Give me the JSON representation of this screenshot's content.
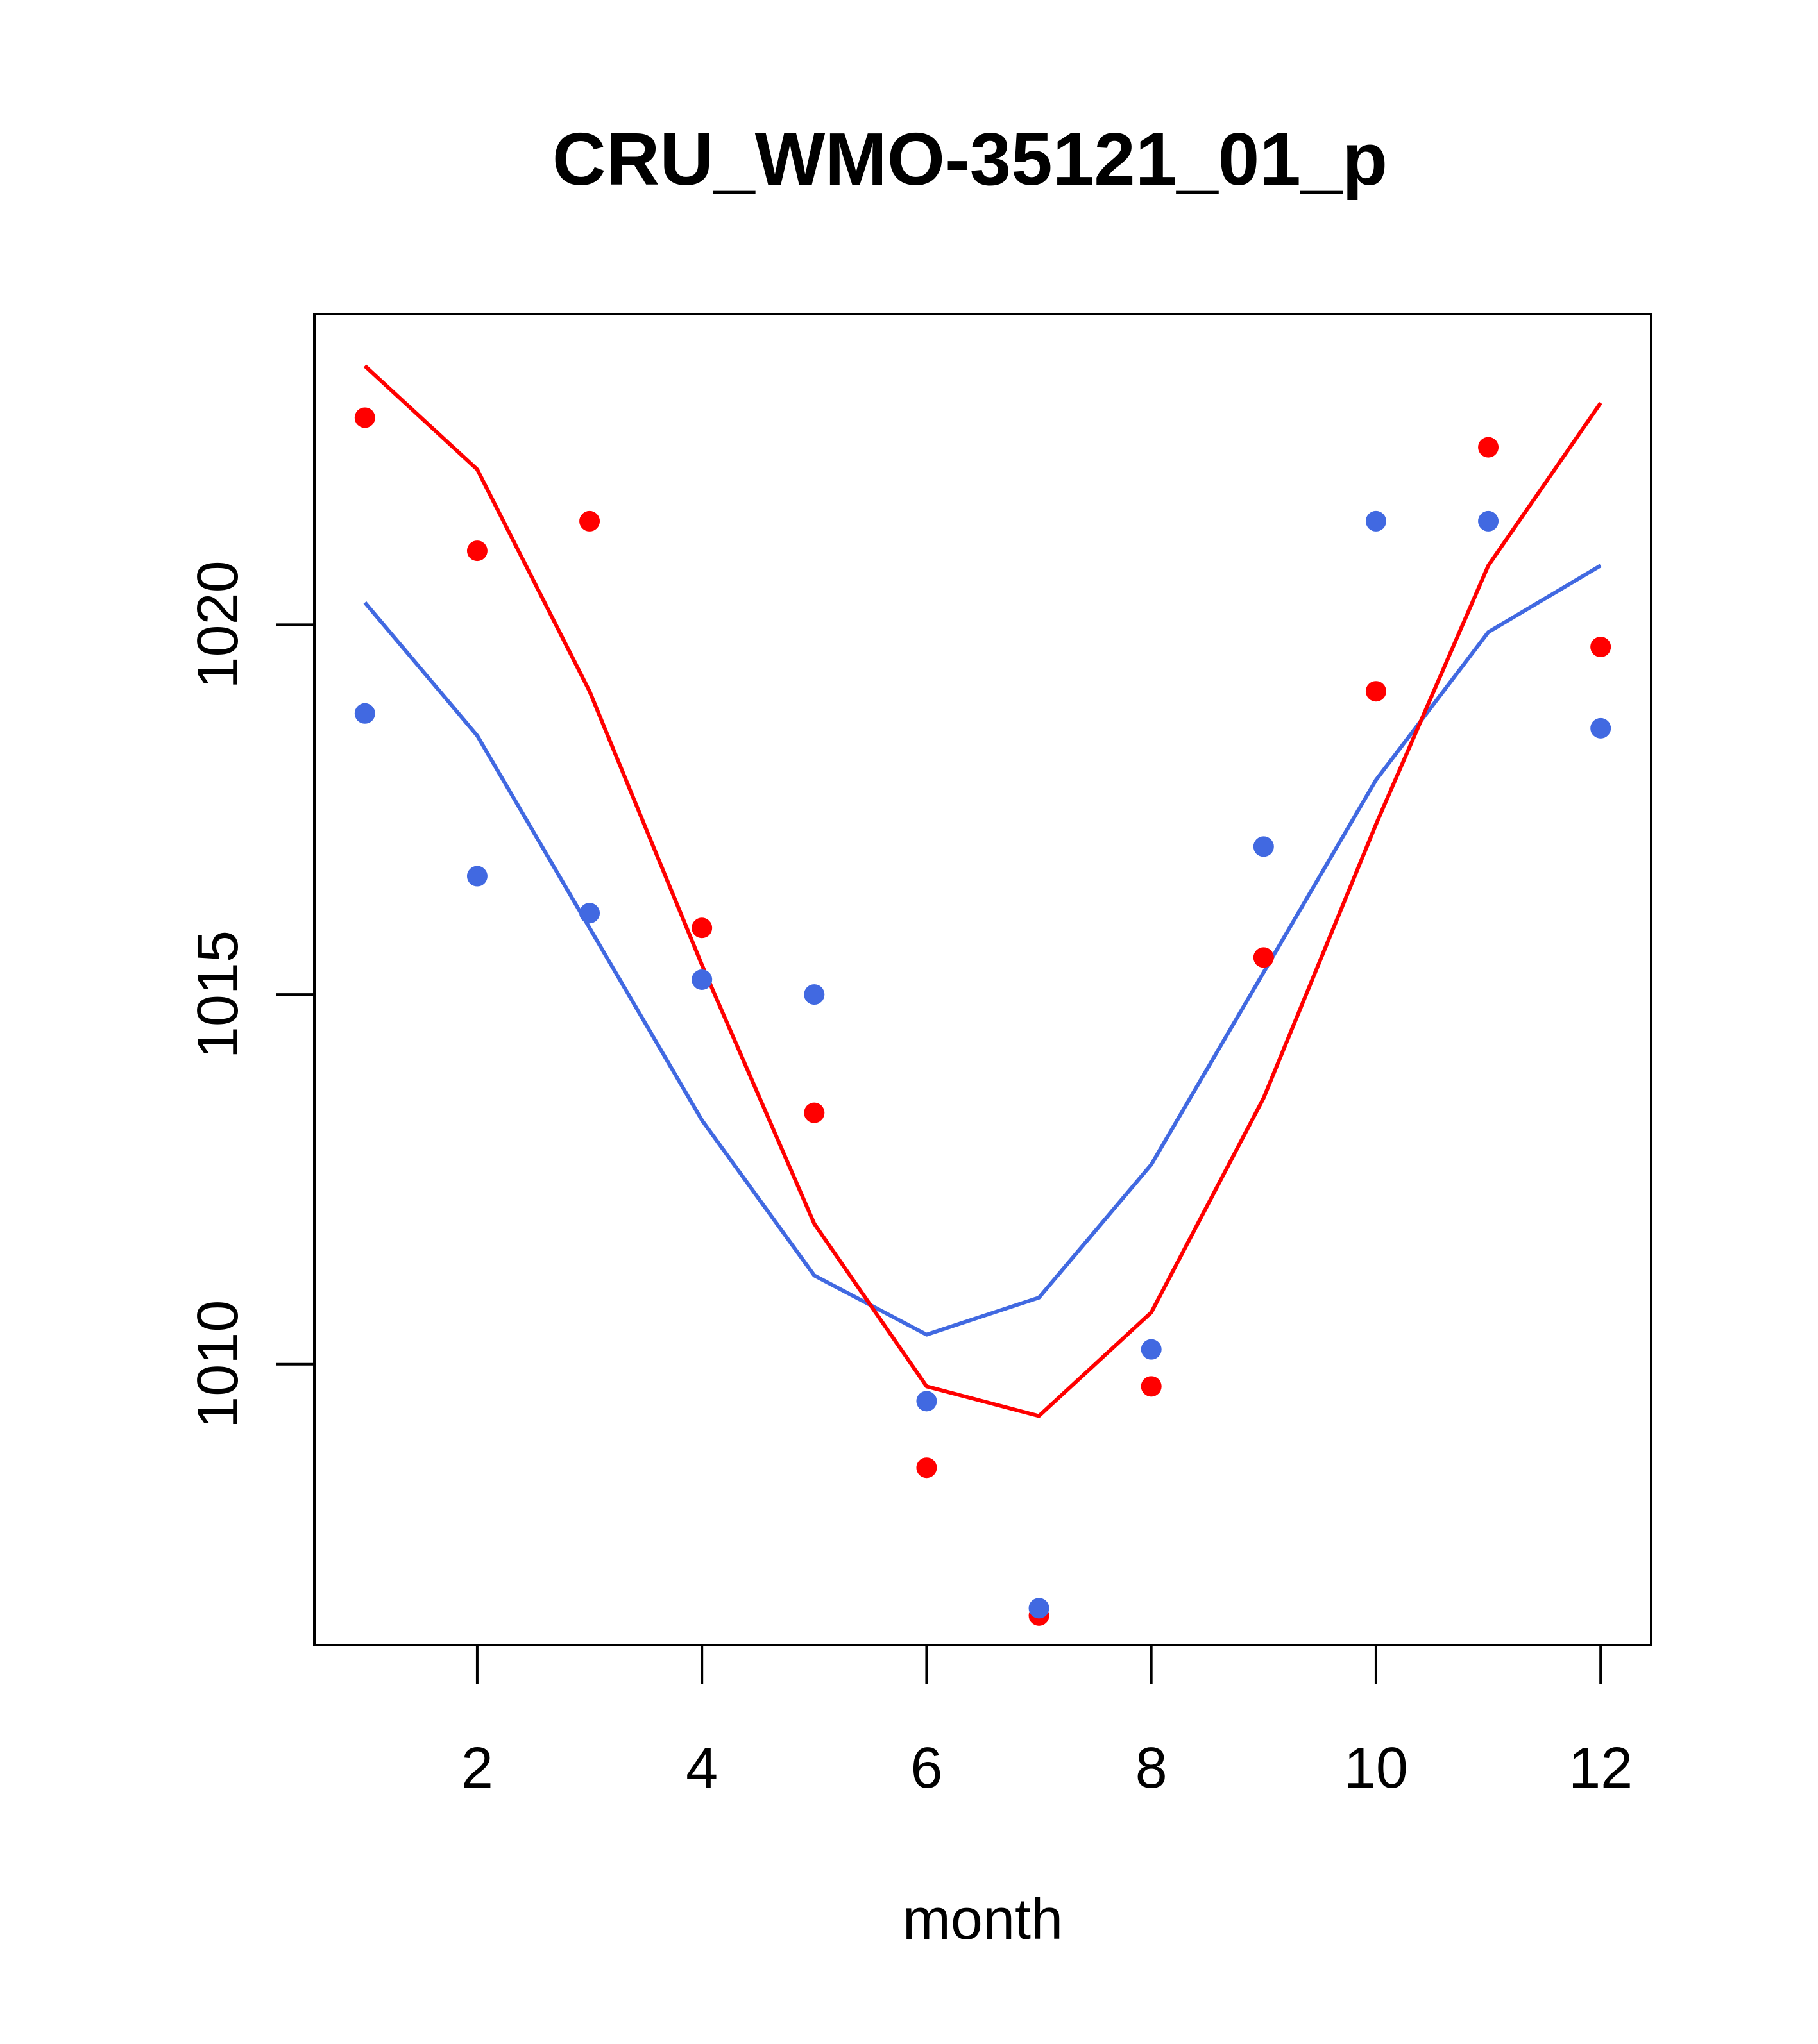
{
  "chart_data": {
    "type": "scatter",
    "title": "CRU_WMO-35121_01_p",
    "xlabel": "month",
    "ylabel": "",
    "xlim": [
      0.55,
      12.45
    ],
    "ylim": [
      1006.2,
      1024.2
    ],
    "x_ticks": [
      2,
      4,
      6,
      8,
      10,
      12
    ],
    "y_ticks": [
      1010,
      1015,
      1020
    ],
    "grid": false,
    "x": [
      1,
      2,
      3,
      4,
      5,
      6,
      7,
      8,
      9,
      10,
      11,
      12
    ],
    "series": [
      {
        "name": "red",
        "color": "#ff0000",
        "points": [
          1022.8,
          1021.0,
          1021.4,
          1015.9,
          1013.4,
          1008.6,
          1006.6,
          1009.7,
          1015.5,
          1019.1,
          1022.4,
          1019.7
        ],
        "line": [
          1023.5,
          1022.1,
          1019.1,
          1015.4,
          1011.9,
          1009.7,
          1009.3,
          1010.7,
          1013.6,
          1017.3,
          1020.8,
          1023.0
        ]
      },
      {
        "name": "blue",
        "color": "#4169e1",
        "points": [
          1018.8,
          1016.6,
          1016.1,
          1015.2,
          1015.0,
          1009.5,
          1006.7,
          1010.2,
          1017.0,
          1021.4,
          1021.4,
          1018.6
        ],
        "line": [
          1020.3,
          1018.5,
          1015.9,
          1013.3,
          1011.2,
          1010.4,
          1010.9,
          1012.7,
          1015.3,
          1017.9,
          1019.9,
          1020.8
        ]
      }
    ]
  }
}
